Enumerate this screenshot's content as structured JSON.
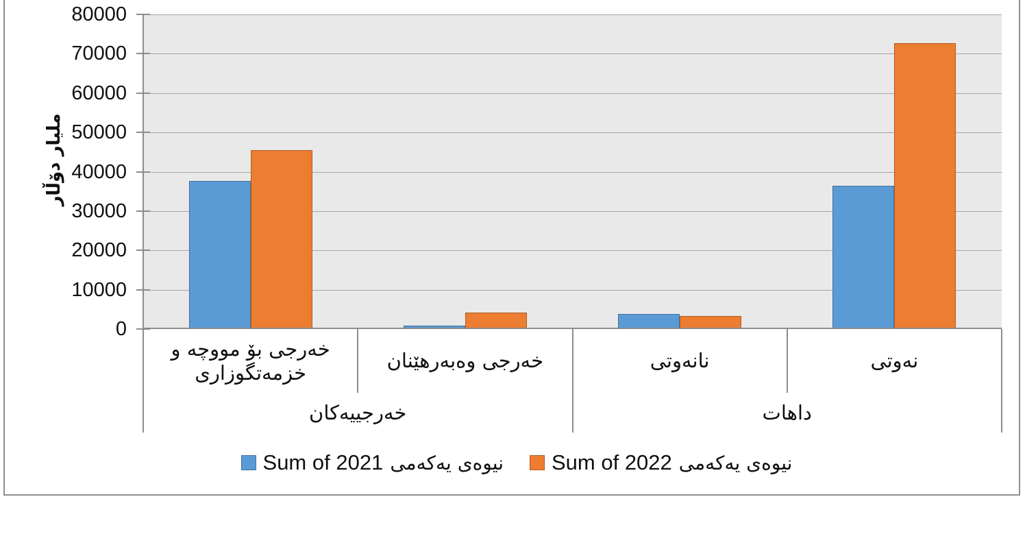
{
  "chart_data": {
    "type": "bar",
    "title": "",
    "xlabel": "",
    "ylabel": "ملیار دۆڵار",
    "ylim": [
      0,
      80000
    ],
    "yticks": [
      0,
      10000,
      20000,
      30000,
      40000,
      50000,
      60000,
      70000,
      80000
    ],
    "grid": true,
    "legend_position": "bottom",
    "plot_bg": "#E9E9E9",
    "gridline_color": "#A6A6A6",
    "axis_color": "#8C8C8C",
    "text_color": "#0F0F0F",
    "categories": [
      "خەرجی بۆ مووچە و خزمەتگوزاری",
      "خەرجی وەبەرهێنان",
      "نانەوتی",
      "نەوتی"
    ],
    "category_groups": [
      {
        "label": "خەرجییەکان",
        "span": [
          0,
          1
        ]
      },
      {
        "label": "داهات",
        "span": [
          2,
          3
        ]
      }
    ],
    "series": [
      {
        "label_en": "Sum of 2021",
        "label_ku": "نیوەی یەکەمی",
        "color": "#5B9BD5",
        "border_color": "#41719C",
        "values": [
          37600,
          900,
          3900,
          36400
        ]
      },
      {
        "label_en": "Sum of 2022",
        "label_ku": "نیوەی یەکەمی",
        "color": "#ED7D31",
        "border_color": "#AE5A21",
        "values": [
          45500,
          4100,
          3300,
          72600
        ]
      }
    ]
  }
}
